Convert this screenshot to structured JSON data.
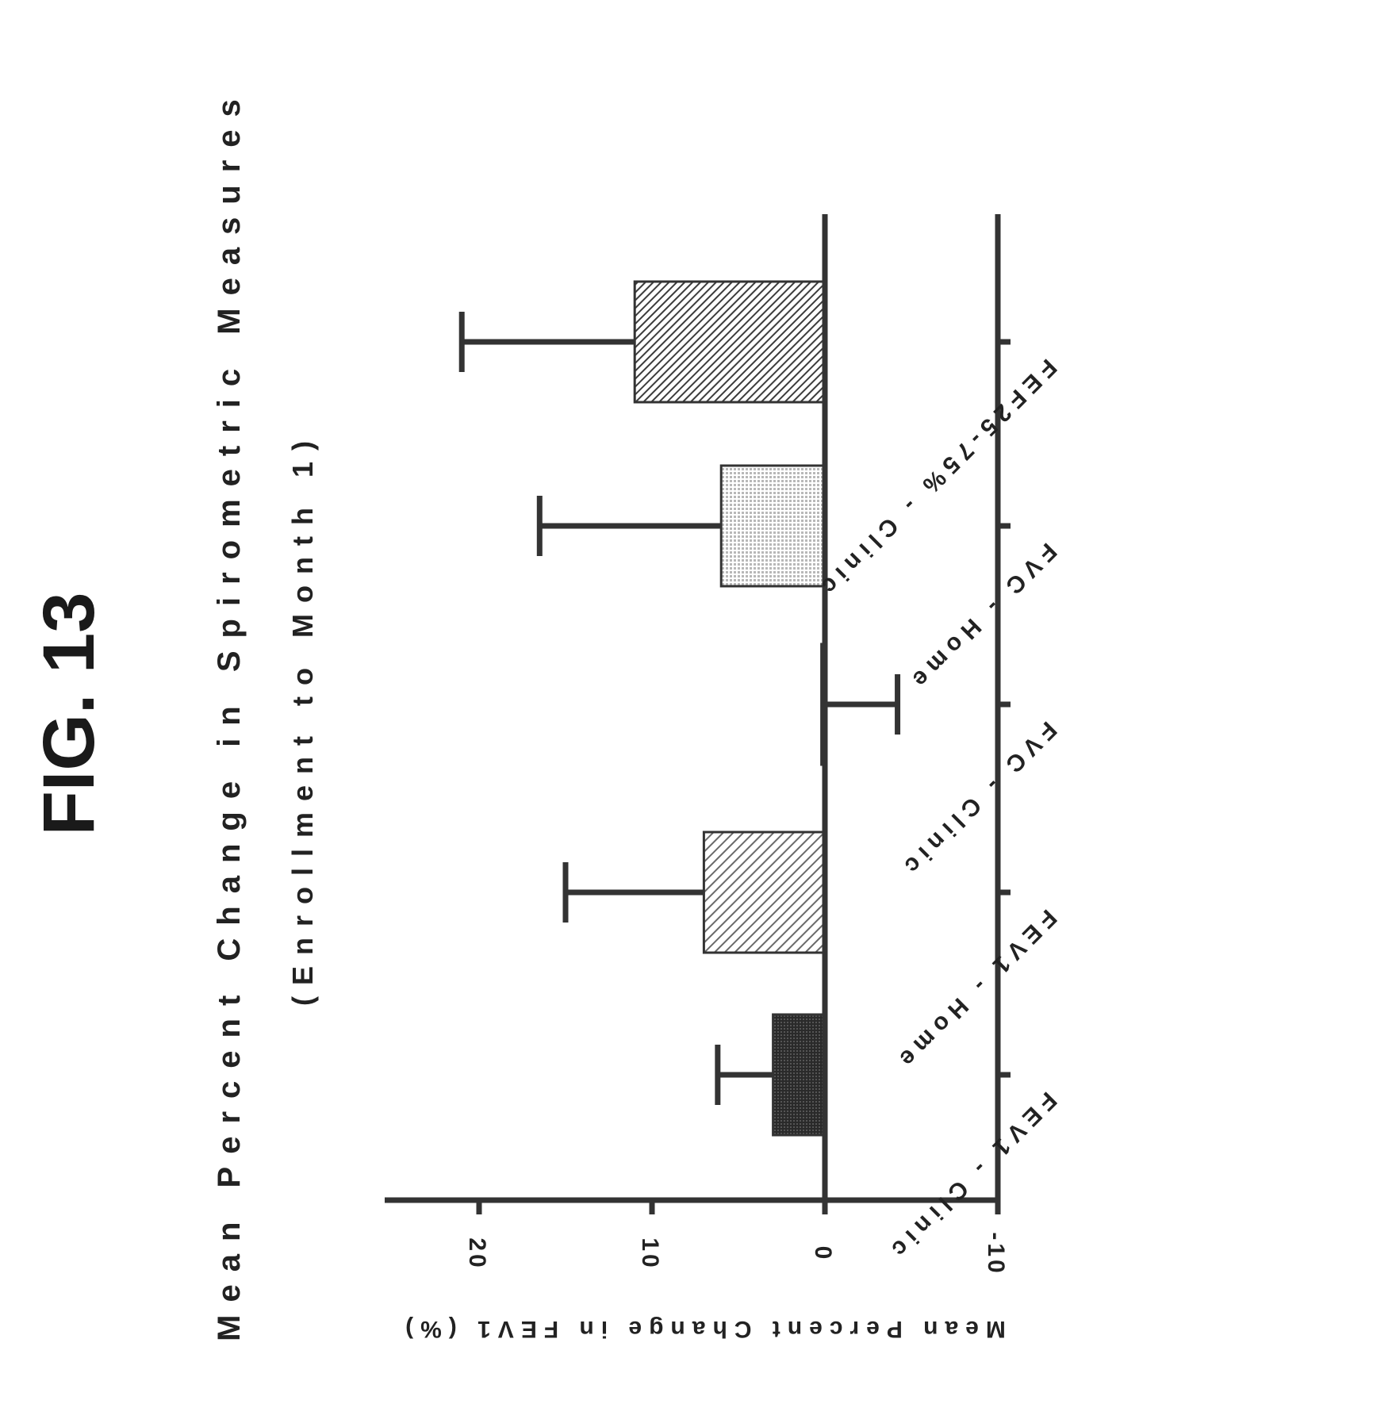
{
  "figure": {
    "label": "FIG. 13"
  },
  "chart_data": {
    "type": "bar",
    "orientation": "vertical bars (figure printed rotated 90 degrees on the page)",
    "title": "Mean Percent Change in Spirometric Measures",
    "subtitle": "(Enrollment to Month 1)",
    "ylabel": "Mean Percent Change in FEV1 (%)",
    "xlabel": "",
    "ylim": [
      -10,
      25
    ],
    "yticks": [
      20,
      10,
      0,
      -10
    ],
    "ytick_labels": [
      "20",
      "10",
      "0",
      "-10"
    ],
    "categories": [
      "FEV1 - Clinic",
      "FEV1 - Home",
      "FVC - Clinic",
      "FVC - Home",
      "FEF25-75% - Clinic"
    ],
    "values": [
      3,
      7,
      0.2,
      6,
      11
    ],
    "error_upper": [
      6.2,
      15,
      -4.2,
      16.5,
      21
    ],
    "grid": false,
    "legend": "none",
    "bar_fills": [
      "dark",
      "hatched",
      "white",
      "light dotted",
      "dark hatched"
    ],
    "colors": {
      "ink": "#333333",
      "bar_dark": "#3a3a3a",
      "bar_hatch": "#8a8a8a",
      "bar_light": "#c8c8c8",
      "bar_dense": "#5a5a5a",
      "background": "#ffffff"
    }
  }
}
